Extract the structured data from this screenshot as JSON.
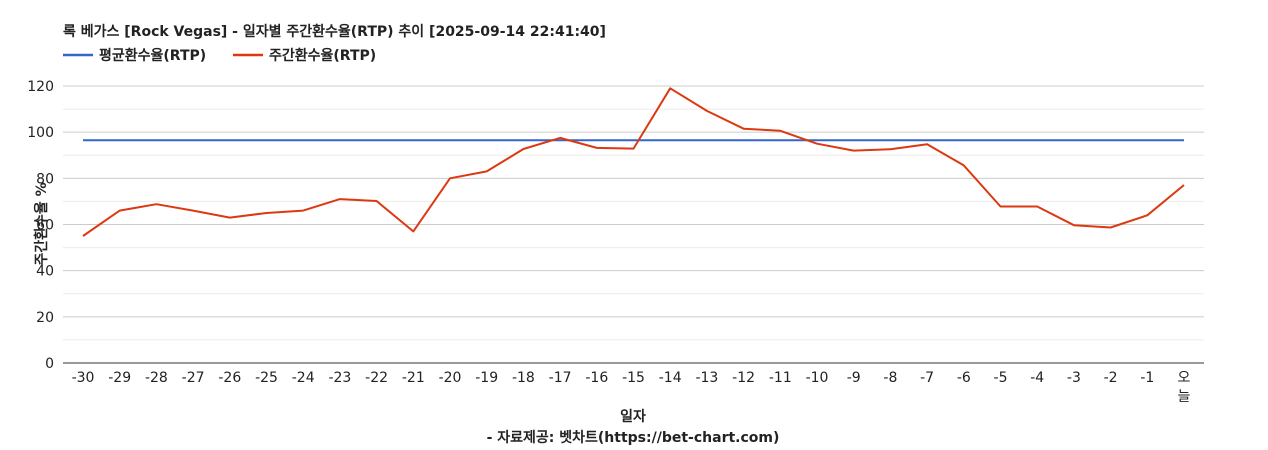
{
  "chart_data": {
    "type": "line",
    "title": "록 베가스 [Rock Vegas] - 일자별 주간환수율(RTP) 추이 [2025-09-14 22:41:40]",
    "xlabel": "일자",
    "ylabel": "주간환수율 %",
    "credit": "- 자료제공: 벳차트(https://bet-chart.com)",
    "categories": [
      "-30",
      "-29",
      "-28",
      "-27",
      "-26",
      "-25",
      "-24",
      "-23",
      "-22",
      "-21",
      "-20",
      "-19",
      "-18",
      "-17",
      "-16",
      "-15",
      "-14",
      "-13",
      "-12",
      "-11",
      "-10",
      "-9",
      "-8",
      "-7",
      "-6",
      "-5",
      "-4",
      "-3",
      "-2",
      "-1",
      "오늘"
    ],
    "ylim": [
      0,
      120
    ],
    "yticks": [
      0,
      20,
      40,
      60,
      80,
      100,
      120
    ],
    "grid": true,
    "legend_position": "top-left",
    "series": [
      {
        "name": "평균환수율(RTP)",
        "color": "#3366cc",
        "values": [
          96.5,
          96.5,
          96.5,
          96.5,
          96.5,
          96.5,
          96.5,
          96.5,
          96.5,
          96.5,
          96.5,
          96.5,
          96.5,
          96.5,
          96.5,
          96.5,
          96.5,
          96.5,
          96.5,
          96.5,
          96.5,
          96.5,
          96.5,
          96.5,
          96.5,
          96.5,
          96.5,
          96.5,
          96.5,
          96.5,
          96.5
        ]
      },
      {
        "name": "주간환수율(RTP)",
        "color": "#dc3912",
        "values": [
          55,
          66,
          68.8,
          66,
          63,
          65,
          66,
          71,
          70.2,
          57,
          80,
          83,
          92.7,
          97.5,
          93.2,
          92.9,
          119,
          109.2,
          101.5,
          100.6,
          95,
          92,
          92.6,
          94.8,
          85.6,
          67.8,
          67.8,
          59.7,
          58.7,
          64,
          77.1
        ]
      }
    ]
  }
}
